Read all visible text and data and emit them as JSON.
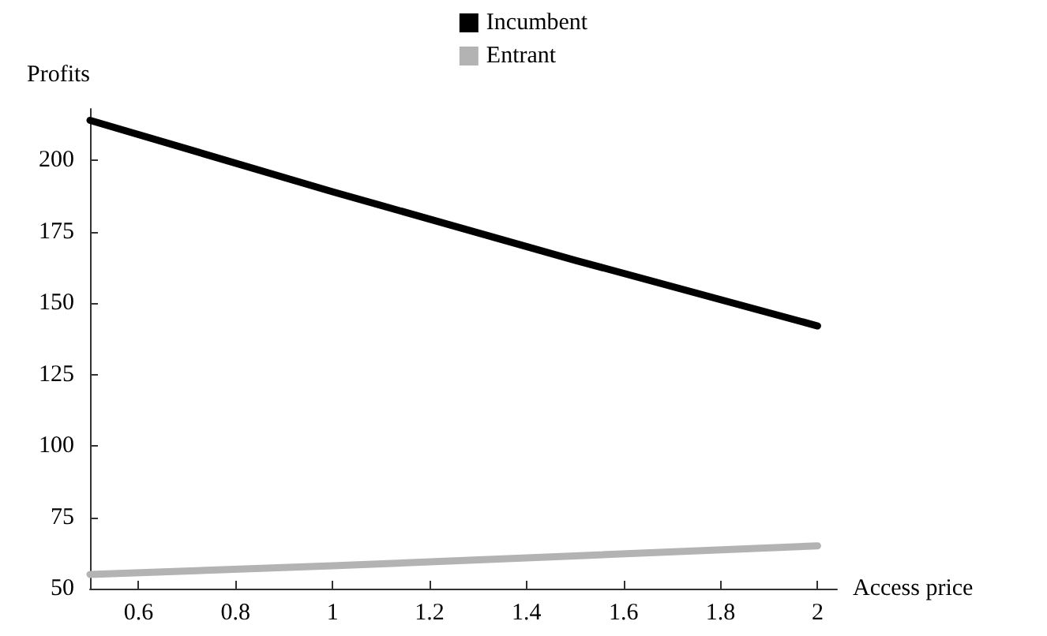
{
  "chart_data": {
    "type": "line",
    "xlabel": "Access price",
    "ylabel": "Profits",
    "x": [
      0.5,
      1,
      1.5,
      2
    ],
    "series": [
      {
        "name": "Incumbent",
        "color": "#000000",
        "values": [
          214,
          189,
          165,
          142
        ]
      },
      {
        "name": "Entrant",
        "color": "#b3b3b3",
        "values": [
          55,
          58,
          61.5,
          65
        ]
      }
    ],
    "xlim": [
      0.5,
      2.04
    ],
    "xticks": [
      0.6,
      0.8,
      1,
      1.2,
      1.4,
      1.6,
      1.8,
      2
    ],
    "ylim": [
      50,
      218
    ],
    "yticks": [
      50,
      75,
      100,
      125,
      150,
      175,
      200
    ],
    "grid": false,
    "legend": "top",
    "marker": "none",
    "line_style": "solid"
  }
}
